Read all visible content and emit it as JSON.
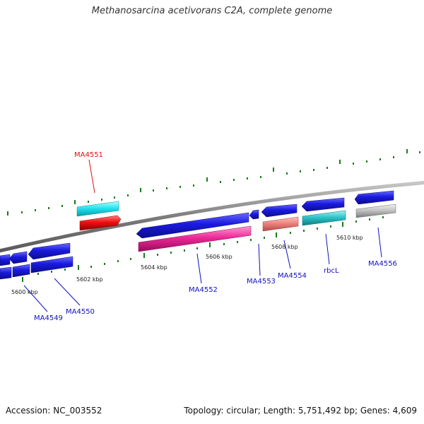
{
  "title": "Methanosarcina acetivorans C2A, complete genome",
  "footer": {
    "accession": "Accession: NC_003552",
    "summary": "Topology: circular; Length: 5,751,492 bp; Genes: 4,609"
  },
  "colors": {
    "backbone": "#888888",
    "tick": "#1a7a1a",
    "gene_blue": "#1a1adc",
    "label_blue": "#1010c0",
    "label_red": "#e01010"
  },
  "ticks": [
    {
      "label": "5600 kbp"
    },
    {
      "label": "5602 kbp"
    },
    {
      "label": "5604 kbp"
    },
    {
      "label": "5606 kbp"
    },
    {
      "label": "5608 kbp"
    },
    {
      "label": "5610 kbp"
    }
  ],
  "genes": [
    {
      "name": "MA4549",
      "color": "blue"
    },
    {
      "name": "MA4550",
      "color": "blue"
    },
    {
      "name": "MA4551",
      "color": "red"
    },
    {
      "name": "MA4552",
      "color": "magenta"
    },
    {
      "name": "MA4553",
      "color": "blue"
    },
    {
      "name": "MA4554",
      "color": "salmon"
    },
    {
      "name": "rbcL",
      "color": "teal"
    },
    {
      "name": "MA4556",
      "color": "gray"
    }
  ]
}
